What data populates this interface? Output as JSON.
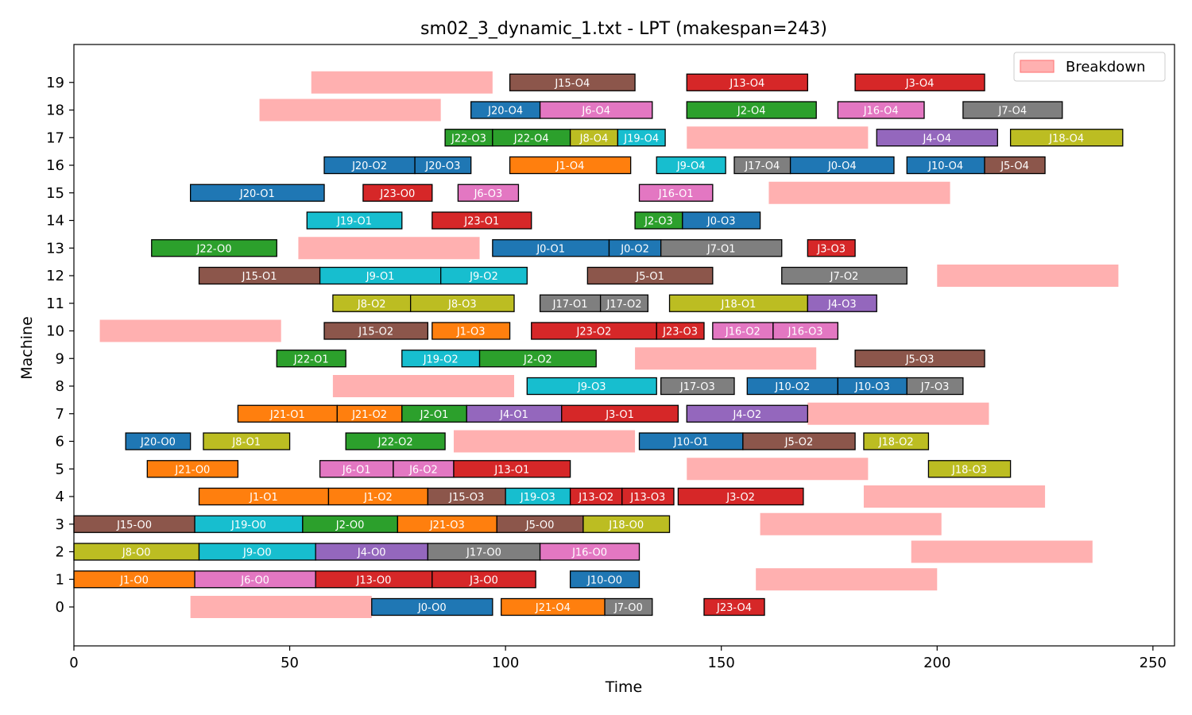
{
  "chart_data": {
    "type": "gantt",
    "title": "sm02_3_dynamic_1.txt - LPT (makespan=243)",
    "xlabel": "Time",
    "ylabel": "Machine",
    "xlim": [
      0,
      255
    ],
    "xticks": [
      0,
      50,
      100,
      150,
      200,
      250
    ],
    "machines": [
      0,
      1,
      2,
      3,
      4,
      5,
      6,
      7,
      8,
      9,
      10,
      11,
      12,
      13,
      14,
      15,
      16,
      17,
      18,
      19
    ],
    "legend": {
      "label": "Breakdown",
      "position": "top-right"
    },
    "colors": {
      "breakdown": "#ffb0b0",
      "J0": "#1f77b4",
      "J1": "#ff7f0e",
      "J2": "#2ca02c",
      "J3": "#d62728",
      "J4": "#9467bd",
      "J5": "#8c564b",
      "J6": "#e377c2",
      "J7": "#7f7f7f",
      "J8": "#bcbd22",
      "J9": "#17becf",
      "J10": "#1f77b4",
      "J13": "#d62728",
      "J15": "#8c564b",
      "J16": "#e377c2",
      "J17": "#7f7f7f",
      "J18": "#bcbd22",
      "J19": "#17becf",
      "J20": "#1f77b4",
      "J21": "#ff7f0e",
      "J22": "#2ca02c",
      "J23": "#d62728"
    },
    "breakdowns": [
      {
        "machine": 19,
        "start": 55,
        "end": 97
      },
      {
        "machine": 18,
        "start": 43,
        "end": 85
      },
      {
        "machine": 17,
        "start": 142,
        "end": 184
      },
      {
        "machine": 15,
        "start": 161,
        "end": 203
      },
      {
        "machine": 13,
        "start": 52,
        "end": 94
      },
      {
        "machine": 12,
        "start": 200,
        "end": 242
      },
      {
        "machine": 10,
        "start": 6,
        "end": 48
      },
      {
        "machine": 9,
        "start": 130,
        "end": 172
      },
      {
        "machine": 8,
        "start": 60,
        "end": 102
      },
      {
        "machine": 7,
        "start": 170,
        "end": 212
      },
      {
        "machine": 6,
        "start": 88,
        "end": 130
      },
      {
        "machine": 5,
        "start": 142,
        "end": 184
      },
      {
        "machine": 4,
        "start": 183,
        "end": 225
      },
      {
        "machine": 3,
        "start": 159,
        "end": 201
      },
      {
        "machine": 2,
        "start": 194,
        "end": 236
      },
      {
        "machine": 1,
        "start": 158,
        "end": 200
      },
      {
        "machine": 0,
        "start": 27,
        "end": 69
      }
    ],
    "operations": [
      {
        "machine": 19,
        "label": "J15-O4",
        "job": "J15",
        "start": 101,
        "end": 130
      },
      {
        "machine": 19,
        "label": "J13-O4",
        "job": "J13",
        "start": 142,
        "end": 170
      },
      {
        "machine": 19,
        "label": "J3-O4",
        "job": "J3",
        "start": 181,
        "end": 211
      },
      {
        "machine": 18,
        "label": "J20-O4",
        "job": "J20",
        "start": 92,
        "end": 108
      },
      {
        "machine": 18,
        "label": "J6-O4",
        "job": "J6",
        "start": 108,
        "end": 134
      },
      {
        "machine": 18,
        "label": "J2-O4",
        "job": "J2",
        "start": 142,
        "end": 172
      },
      {
        "machine": 18,
        "label": "J16-O4",
        "job": "J16",
        "start": 177,
        "end": 197
      },
      {
        "machine": 18,
        "label": "J7-O4",
        "job": "J7",
        "start": 206,
        "end": 229
      },
      {
        "machine": 17,
        "label": "J22-O3",
        "job": "J22",
        "start": 86,
        "end": 97
      },
      {
        "machine": 17,
        "label": "J22-O4",
        "job": "J22",
        "start": 97,
        "end": 115
      },
      {
        "machine": 17,
        "label": "J8-O4",
        "job": "J8",
        "start": 115,
        "end": 126
      },
      {
        "machine": 17,
        "label": "J19-O4",
        "job": "J19",
        "start": 126,
        "end": 137
      },
      {
        "machine": 17,
        "label": "J4-O4",
        "job": "J4",
        "start": 186,
        "end": 214
      },
      {
        "machine": 17,
        "label": "J18-O4",
        "job": "J18",
        "start": 217,
        "end": 243
      },
      {
        "machine": 16,
        "label": "J20-O2",
        "job": "J20",
        "start": 58,
        "end": 79
      },
      {
        "machine": 16,
        "label": "J20-O3",
        "job": "J20",
        "start": 79,
        "end": 92
      },
      {
        "machine": 16,
        "label": "J1-O4",
        "job": "J1",
        "start": 101,
        "end": 129
      },
      {
        "machine": 16,
        "label": "J9-O4",
        "job": "J9",
        "start": 135,
        "end": 151
      },
      {
        "machine": 16,
        "label": "J17-O4",
        "job": "J17",
        "start": 153,
        "end": 166
      },
      {
        "machine": 16,
        "label": "J0-O4",
        "job": "J0",
        "start": 166,
        "end": 190
      },
      {
        "machine": 16,
        "label": "J10-O4",
        "job": "J10",
        "start": 193,
        "end": 211
      },
      {
        "machine": 16,
        "label": "J5-O4",
        "job": "J5",
        "start": 211,
        "end": 225
      },
      {
        "machine": 15,
        "label": "J20-O1",
        "job": "J20",
        "start": 27,
        "end": 58
      },
      {
        "machine": 15,
        "label": "J23-O0",
        "job": "J23",
        "start": 67,
        "end": 83
      },
      {
        "machine": 15,
        "label": "J6-O3",
        "job": "J6",
        "start": 89,
        "end": 103
      },
      {
        "machine": 15,
        "label": "J16-O1",
        "job": "J16",
        "start": 131,
        "end": 148
      },
      {
        "machine": 14,
        "label": "J19-O1",
        "job": "J19",
        "start": 54,
        "end": 76
      },
      {
        "machine": 14,
        "label": "J23-O1",
        "job": "J23",
        "start": 83,
        "end": 106
      },
      {
        "machine": 14,
        "label": "J2-O3",
        "job": "J2",
        "start": 130,
        "end": 141
      },
      {
        "machine": 14,
        "label": "J0-O3",
        "job": "J0",
        "start": 141,
        "end": 159
      },
      {
        "machine": 13,
        "label": "J22-O0",
        "job": "J22",
        "start": 18,
        "end": 47
      },
      {
        "machine": 13,
        "label": "J0-O1",
        "job": "J0",
        "start": 97,
        "end": 124
      },
      {
        "machine": 13,
        "label": "J0-O2",
        "job": "J0",
        "start": 124,
        "end": 136
      },
      {
        "machine": 13,
        "label": "J7-O1",
        "job": "J7",
        "start": 136,
        "end": 164
      },
      {
        "machine": 13,
        "label": "J3-O3",
        "job": "J3",
        "start": 170,
        "end": 181
      },
      {
        "machine": 12,
        "label": "J15-O1",
        "job": "J15",
        "start": 29,
        "end": 57
      },
      {
        "machine": 12,
        "label": "J9-O1",
        "job": "J9",
        "start": 57,
        "end": 85
      },
      {
        "machine": 12,
        "label": "J9-O2",
        "job": "J9",
        "start": 85,
        "end": 105
      },
      {
        "machine": 12,
        "label": "J5-O1",
        "job": "J5",
        "start": 119,
        "end": 148
      },
      {
        "machine": 12,
        "label": "J7-O2",
        "job": "J7",
        "start": 164,
        "end": 193
      },
      {
        "machine": 11,
        "label": "J8-O2",
        "job": "J8",
        "start": 60,
        "end": 78
      },
      {
        "machine": 11,
        "label": "J8-O3",
        "job": "J8",
        "start": 78,
        "end": 102
      },
      {
        "machine": 11,
        "label": "J17-O1",
        "job": "J17",
        "start": 108,
        "end": 122
      },
      {
        "machine": 11,
        "label": "J17-O2",
        "job": "J17",
        "start": 122,
        "end": 133
      },
      {
        "machine": 11,
        "label": "J18-O1",
        "job": "J18",
        "start": 138,
        "end": 170
      },
      {
        "machine": 11,
        "label": "J4-O3",
        "job": "J4",
        "start": 170,
        "end": 186
      },
      {
        "machine": 10,
        "label": "J15-O2",
        "job": "J15",
        "start": 58,
        "end": 82
      },
      {
        "machine": 10,
        "label": "J1-O3",
        "job": "J1",
        "start": 83,
        "end": 101
      },
      {
        "machine": 10,
        "label": "J23-O2",
        "job": "J23",
        "start": 106,
        "end": 135
      },
      {
        "machine": 10,
        "label": "J23-O3",
        "job": "J23",
        "start": 135,
        "end": 146
      },
      {
        "machine": 10,
        "label": "J16-O2",
        "job": "J16",
        "start": 148,
        "end": 162
      },
      {
        "machine": 10,
        "label": "J16-O3",
        "job": "J16",
        "start": 162,
        "end": 177
      },
      {
        "machine": 9,
        "label": "J22-O1",
        "job": "J22",
        "start": 47,
        "end": 63
      },
      {
        "machine": 9,
        "label": "J19-O2",
        "job": "J19",
        "start": 76,
        "end": 94
      },
      {
        "machine": 9,
        "label": "J2-O2",
        "job": "J2",
        "start": 94,
        "end": 121
      },
      {
        "machine": 9,
        "label": "J5-O3",
        "job": "J5",
        "start": 181,
        "end": 211
      },
      {
        "machine": 8,
        "label": "J9-O3",
        "job": "J9",
        "start": 105,
        "end": 135
      },
      {
        "machine": 8,
        "label": "J17-O3",
        "job": "J17",
        "start": 136,
        "end": 153
      },
      {
        "machine": 8,
        "label": "J10-O2",
        "job": "J10",
        "start": 156,
        "end": 177
      },
      {
        "machine": 8,
        "label": "J10-O3",
        "job": "J10",
        "start": 177,
        "end": 193
      },
      {
        "machine": 8,
        "label": "J7-O3",
        "job": "J7",
        "start": 193,
        "end": 206
      },
      {
        "machine": 7,
        "label": "J21-O1",
        "job": "J21",
        "start": 38,
        "end": 61
      },
      {
        "machine": 7,
        "label": "J21-O2",
        "job": "J21",
        "start": 61,
        "end": 76
      },
      {
        "machine": 7,
        "label": "J2-O1",
        "job": "J2",
        "start": 76,
        "end": 91
      },
      {
        "machine": 7,
        "label": "J4-O1",
        "job": "J4",
        "start": 91,
        "end": 113
      },
      {
        "machine": 7,
        "label": "J3-O1",
        "job": "J3",
        "start": 113,
        "end": 140
      },
      {
        "machine": 7,
        "label": "J4-O2",
        "job": "J4",
        "start": 142,
        "end": 170
      },
      {
        "machine": 6,
        "label": "J20-O0",
        "job": "J20",
        "start": 12,
        "end": 27
      },
      {
        "machine": 6,
        "label": "J8-O1",
        "job": "J8",
        "start": 30,
        "end": 50
      },
      {
        "machine": 6,
        "label": "J22-O2",
        "job": "J22",
        "start": 63,
        "end": 86
      },
      {
        "machine": 6,
        "label": "J10-O1",
        "job": "J10",
        "start": 131,
        "end": 155
      },
      {
        "machine": 6,
        "label": "J5-O2",
        "job": "J5",
        "start": 155,
        "end": 181
      },
      {
        "machine": 6,
        "label": "J18-O2",
        "job": "J18",
        "start": 183,
        "end": 198
      },
      {
        "machine": 5,
        "label": "J21-O0",
        "job": "J21",
        "start": 17,
        "end": 38
      },
      {
        "machine": 5,
        "label": "J6-O1",
        "job": "J6",
        "start": 57,
        "end": 74
      },
      {
        "machine": 5,
        "label": "J6-O2",
        "job": "J6",
        "start": 74,
        "end": 88
      },
      {
        "machine": 5,
        "label": "J13-O1",
        "job": "J13",
        "start": 88,
        "end": 115
      },
      {
        "machine": 5,
        "label": "J18-O3",
        "job": "J18",
        "start": 198,
        "end": 217
      },
      {
        "machine": 4,
        "label": "J1-O1",
        "job": "J1",
        "start": 29,
        "end": 59
      },
      {
        "machine": 4,
        "label": "J1-O2",
        "job": "J1",
        "start": 59,
        "end": 82
      },
      {
        "machine": 4,
        "label": "J15-O3",
        "job": "J15",
        "start": 82,
        "end": 100
      },
      {
        "machine": 4,
        "label": "J19-O3",
        "job": "J19",
        "start": 100,
        "end": 115
      },
      {
        "machine": 4,
        "label": "J13-O2",
        "job": "J13",
        "start": 115,
        "end": 127
      },
      {
        "machine": 4,
        "label": "J13-O3",
        "job": "J13",
        "start": 127,
        "end": 139
      },
      {
        "machine": 4,
        "label": "J3-O2",
        "job": "J3",
        "start": 140,
        "end": 169
      },
      {
        "machine": 3,
        "label": "J15-O0",
        "job": "J15",
        "start": 0,
        "end": 28
      },
      {
        "machine": 3,
        "label": "J19-O0",
        "job": "J19",
        "start": 28,
        "end": 53
      },
      {
        "machine": 3,
        "label": "J2-O0",
        "job": "J2",
        "start": 53,
        "end": 75
      },
      {
        "machine": 3,
        "label": "J21-O3",
        "job": "J21",
        "start": 75,
        "end": 98
      },
      {
        "machine": 3,
        "label": "J5-O0",
        "job": "J5",
        "start": 98,
        "end": 118
      },
      {
        "machine": 3,
        "label": "J18-O0",
        "job": "J18",
        "start": 118,
        "end": 138
      },
      {
        "machine": 2,
        "label": "J8-O0",
        "job": "J8",
        "start": 0,
        "end": 29
      },
      {
        "machine": 2,
        "label": "J9-O0",
        "job": "J9",
        "start": 29,
        "end": 56
      },
      {
        "machine": 2,
        "label": "J4-O0",
        "job": "J4",
        "start": 56,
        "end": 82
      },
      {
        "machine": 2,
        "label": "J17-O0",
        "job": "J17",
        "start": 82,
        "end": 108
      },
      {
        "machine": 2,
        "label": "J16-O0",
        "job": "J16",
        "start": 108,
        "end": 131
      },
      {
        "machine": 1,
        "label": "J1-O0",
        "job": "J1",
        "start": 0,
        "end": 28
      },
      {
        "machine": 1,
        "label": "J6-O0",
        "job": "J6",
        "start": 28,
        "end": 56
      },
      {
        "machine": 1,
        "label": "J13-O0",
        "job": "J13",
        "start": 56,
        "end": 83
      },
      {
        "machine": 1,
        "label": "J3-O0",
        "job": "J3",
        "start": 83,
        "end": 107
      },
      {
        "machine": 1,
        "label": "J10-O0",
        "job": "J10",
        "start": 115,
        "end": 131
      },
      {
        "machine": 0,
        "label": "J0-O0",
        "job": "J0",
        "start": 69,
        "end": 97
      },
      {
        "machine": 0,
        "label": "J21-O4",
        "job": "J21",
        "start": 99,
        "end": 123
      },
      {
        "machine": 0,
        "label": "J7-O0",
        "job": "J7",
        "start": 123,
        "end": 134
      },
      {
        "machine": 0,
        "label": "J23-O4",
        "job": "J23",
        "start": 146,
        "end": 160
      }
    ]
  }
}
